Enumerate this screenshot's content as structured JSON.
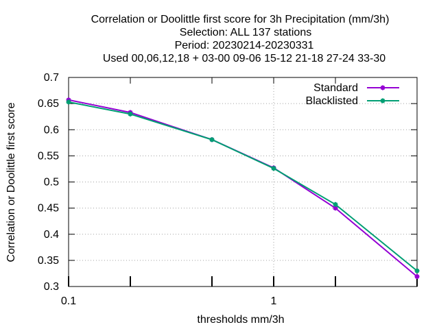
{
  "chart_data": {
    "type": "line",
    "title_lines": [
      "Correlation or Doolittle first score  for 3h Precipitation (mm/3h)",
      "Selection: ALL    137 stations",
      "Period: 20230214-20230331",
      "Used  00,06,12,18 + 03-00 09-06 15-12 21-18 27-24 33-30"
    ],
    "xlabel": "thresholds mm/3h",
    "ylabel": "Correlation or Doolittle first score",
    "x_scale": "log",
    "xlim": [
      0.1,
      5
    ],
    "ylim": [
      0.3,
      0.7
    ],
    "x_ticks": [
      {
        "value": 0.1,
        "label": "0.1"
      },
      {
        "value": 0.2,
        "label": ""
      },
      {
        "value": 0.5,
        "label": ""
      },
      {
        "value": 1,
        "label": "1"
      },
      {
        "value": 2,
        "label": ""
      },
      {
        "value": 5,
        "label": ""
      }
    ],
    "y_ticks": [
      {
        "value": 0.3,
        "label": "0.3"
      },
      {
        "value": 0.35,
        "label": "0.35"
      },
      {
        "value": 0.4,
        "label": "0.4"
      },
      {
        "value": 0.45,
        "label": "0.45"
      },
      {
        "value": 0.5,
        "label": "0.5"
      },
      {
        "value": 0.55,
        "label": "0.55"
      },
      {
        "value": 0.6,
        "label": "0.6"
      },
      {
        "value": 0.65,
        "label": "0.65"
      },
      {
        "value": 0.7,
        "label": "0.7"
      }
    ],
    "grid": "dotted at labeled ticks",
    "legend_position": "top-right",
    "series": [
      {
        "name": "Standard",
        "color": "#9400d3",
        "x": [
          0.1,
          0.2,
          0.5,
          1,
          2,
          5
        ],
        "y": [
          0.657,
          0.633,
          0.581,
          0.527,
          0.45,
          0.319
        ]
      },
      {
        "name": "Blacklisted",
        "color": "#009e73",
        "x": [
          0.1,
          0.2,
          0.5,
          1,
          2,
          5
        ],
        "y": [
          0.653,
          0.63,
          0.581,
          0.526,
          0.457,
          0.33
        ]
      }
    ]
  }
}
